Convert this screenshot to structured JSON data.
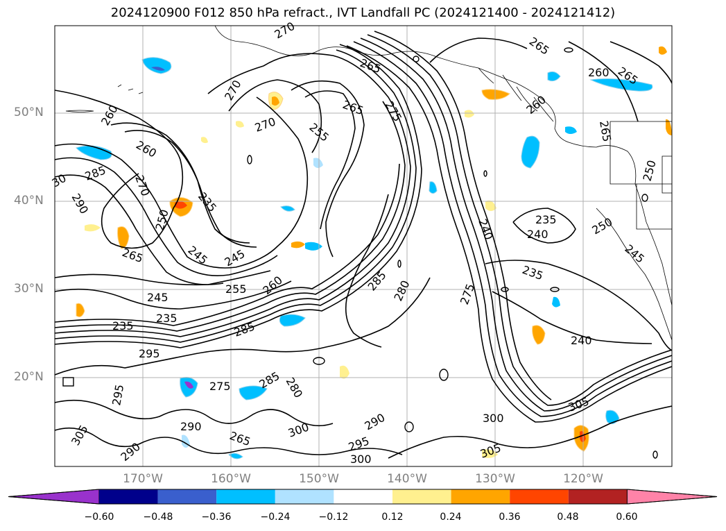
{
  "title": "2024120900 F012 850 hPa refract., IVT Landfall PC (2024121400 - 2024121412)",
  "lat_labels": [
    "50°N",
    "40°N",
    "30°N",
    "20°N"
  ],
  "lon_labels": [
    "170°W",
    "160°W",
    "150°W",
    "140°W",
    "130°W",
    "120°W"
  ],
  "colorbar": {
    "colors": [
      "#9932cc",
      "#00008b",
      "#3a5fcd",
      "#00bfff",
      "#b0e2ff",
      "#ffffff",
      "#fff08f",
      "#ffa500",
      "#ff4500",
      "#b22222",
      "#ff83a8"
    ],
    "ticks": [
      "−0.60",
      "−0.48",
      "−0.36",
      "−0.24",
      "−0.12",
      "0.12",
      "0.24",
      "0.36",
      "0.48",
      "0.60"
    ]
  },
  "contour_labels": [
    "270",
    "270",
    "265",
    "265",
    "260",
    "260",
    "265",
    "260",
    "270",
    "255",
    "265",
    "275",
    "260",
    "265",
    "285",
    "270",
    "30",
    "290",
    "250",
    "265",
    "235",
    "245",
    "245",
    "235",
    "240",
    "235",
    "240",
    "250",
    "245",
    "275",
    "255",
    "245",
    "260",
    "285",
    "280",
    "235",
    "250",
    "235",
    "295",
    "275",
    "240",
    "285",
    "285",
    "280",
    "295",
    "305",
    "300",
    "305",
    "290",
    "300",
    "295",
    "290",
    "290",
    "300",
    "305",
    "265"
  ]
}
